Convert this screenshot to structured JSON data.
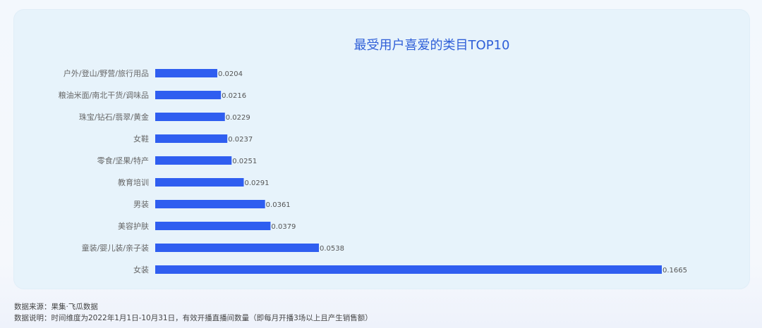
{
  "chart_data": {
    "type": "bar",
    "orientation": "horizontal",
    "title": "最受用户喜爱的类目TOP10",
    "categories": [
      "户外/登山/野营/旅行用品",
      "粮油米面/南北干货/调味品",
      "珠宝/钻石/翡翠/黄金",
      "女鞋",
      "零食/坚果/特产",
      "教育培训",
      "男装",
      "美容护肤",
      "童装/婴儿装/亲子装",
      "女装"
    ],
    "values": [
      0.0204,
      0.0216,
      0.0229,
      0.0237,
      0.0251,
      0.0291,
      0.0361,
      0.0379,
      0.0538,
      0.1665
    ],
    "value_labels": [
      "0.0204",
      "0.0216",
      "0.0229",
      "0.0237",
      "0.0251",
      "0.0291",
      "0.0361",
      "0.0379",
      "0.0538",
      "0.1665"
    ],
    "xlim": [
      0,
      0.1665
    ],
    "grid": false,
    "bar_color": "#2f5ef0"
  },
  "footer": {
    "source": "数据来源：果集·飞瓜数据",
    "note": "数据说明：时间维度为2022年1月1日-10月31日，有效开播直播间数量（即每月开播3场以上且产生销售额）"
  }
}
